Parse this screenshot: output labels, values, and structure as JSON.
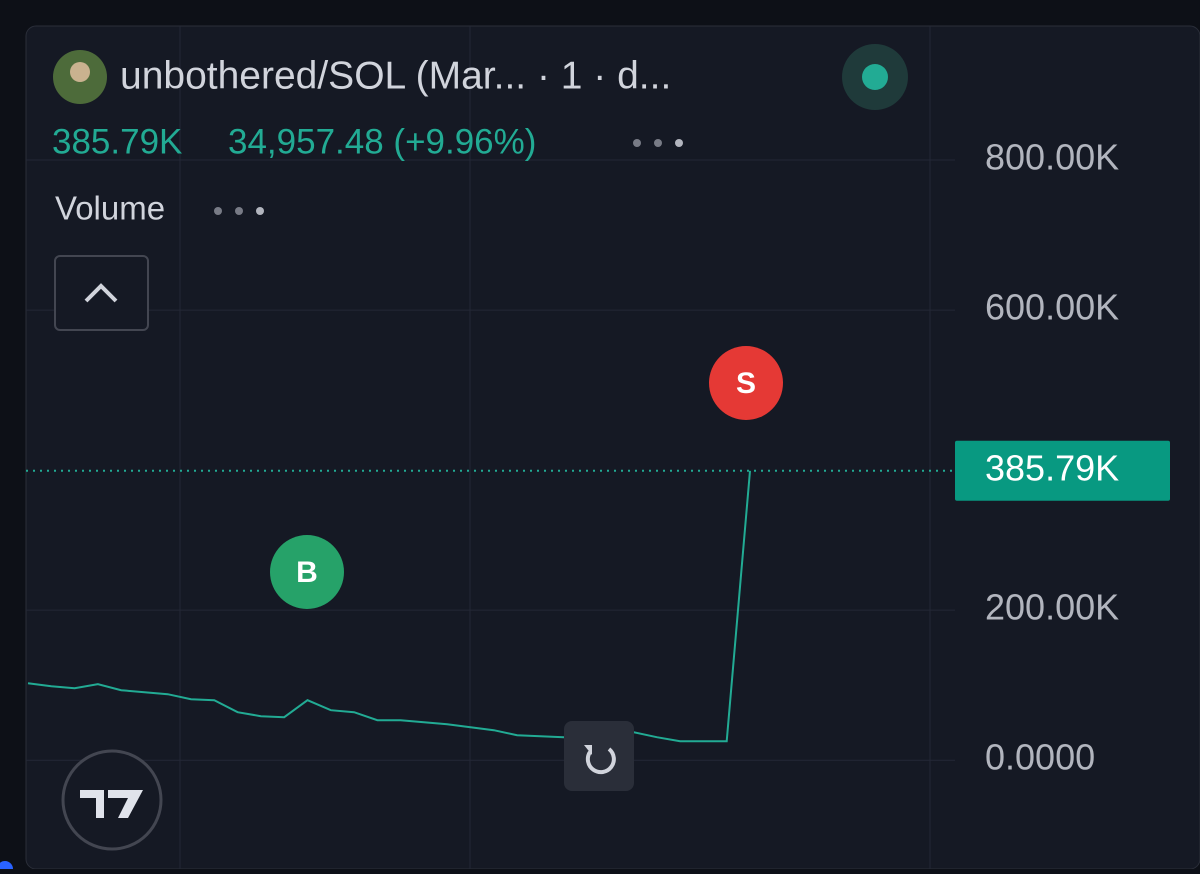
{
  "chart_data": {
    "type": "line",
    "title": "unbothered/SOL (Mar... · 1 · d...",
    "header_price": "385.79K",
    "change": "34,957.48 (+9.96%)",
    "indicator": "Volume",
    "annotations": [
      "B",
      "S"
    ],
    "categories": [
      null,
      null,
      null,
      null,
      null,
      null,
      null,
      null,
      null,
      null,
      null,
      null,
      null,
      null,
      null,
      null,
      null,
      null,
      null,
      null,
      null,
      null,
      null,
      null,
      null,
      null,
      null,
      null,
      null,
      null,
      null,
      null
    ],
    "values": [
      102700,
      98700,
      96000,
      101300,
      93300,
      90700,
      88000,
      81300,
      80000,
      64000,
      58700,
      57300,
      80000,
      66700,
      64000,
      53300,
      53300,
      50700,
      48000,
      44000,
      40000,
      33300,
      32000,
      30700,
      30700,
      30700,
      37300,
      30700,
      25300,
      25300,
      25300,
      385790
    ],
    "color": "#22ab94",
    "ylim": [
      -145000,
      980000
    ],
    "yticks": [
      {
        "value": 800000,
        "label": "800.00K"
      },
      {
        "value": 600000,
        "label": "600.00K"
      },
      {
        "value": 200000,
        "label": "200.00K"
      },
      {
        "value": 0,
        "label": "0.0000"
      }
    ],
    "current_price": {
      "value": 385790,
      "label": "385.79K"
    },
    "grid": true
  }
}
